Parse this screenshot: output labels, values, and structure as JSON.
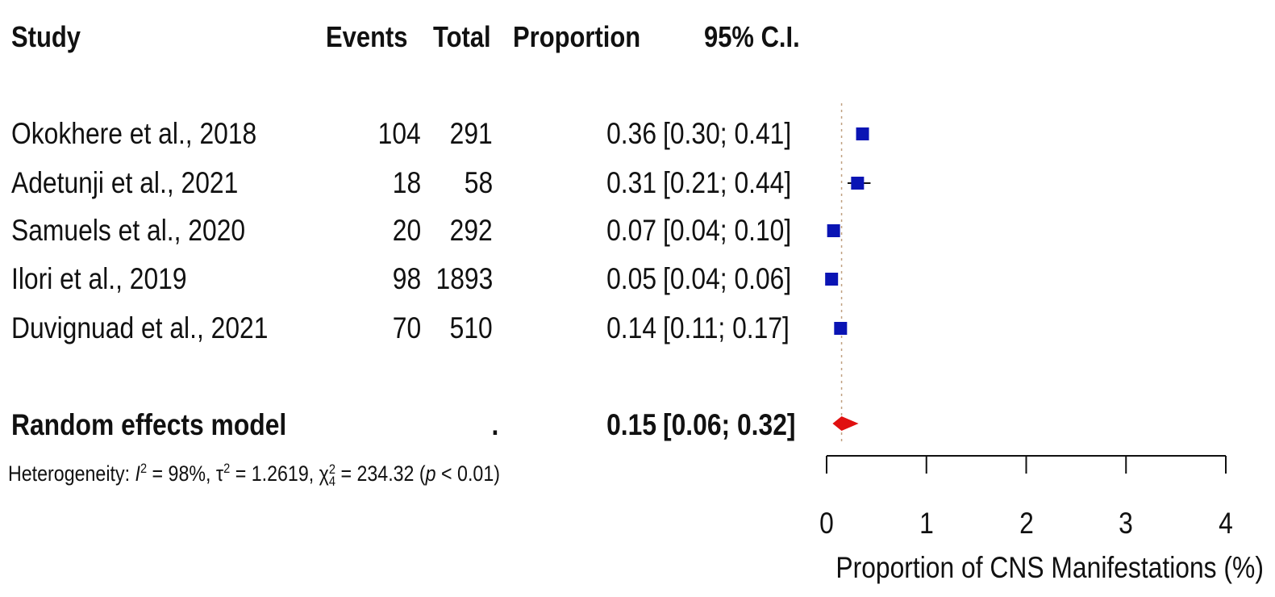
{
  "headers": {
    "study": "Study",
    "events": "Events",
    "total": "Total",
    "proportion": "Proportion",
    "ci": "95% C.I."
  },
  "studies": [
    {
      "study": "Okokhere et al., 2018",
      "events": "104",
      "total": "291",
      "proportion": "0.36",
      "ci": "[0.30; 0.41]"
    },
    {
      "study": "Adetunji et al., 2021",
      "events": "18",
      "total": "58",
      "proportion": "0.31",
      "ci": "[0.21; 0.44]"
    },
    {
      "study": "Samuels et al., 2020",
      "events": "20",
      "total": "292",
      "proportion": "0.07",
      "ci": "[0.04; 0.10]"
    },
    {
      "study": "Ilori et al., 2019",
      "events": "98",
      "total": "1893",
      "proportion": "0.05",
      "ci": "[0.04; 0.06]"
    },
    {
      "study": "Duvignuad et al., 2021",
      "events": "70",
      "total": "510",
      "proportion": "0.14",
      "ci": "[0.11; 0.17]"
    }
  ],
  "summary": {
    "label": "Random effects model",
    "events": ".",
    "proportion": "0.15",
    "ci": "[0.06; 0.32]"
  },
  "heterogeneity": {
    "prefix": "Heterogeneity: ",
    "i2_symbol": "I",
    "i2_sup": "2",
    "i2_value": " = 98%, ",
    "tau_symbol": "τ",
    "tau_sup": "2",
    "tau_value": " = 1.2619, ",
    "chi_symbol": "χ",
    "chi_sup": "2",
    "chi_sub": "4",
    "chi_value": " = 234.32 (",
    "p_symbol": "p",
    "p_value": " < 0.01)"
  },
  "colors": {
    "study_marker": "#0a14b4",
    "summary_marker": "#e01010",
    "reference_line": "#c0a080"
  },
  "chart_data": {
    "type": "forest",
    "xlabel": "Proportion of CNS Manifestations (%)",
    "xlim": [
      0,
      4
    ],
    "xticks": [
      0,
      1,
      2,
      3,
      4
    ],
    "reference_line": 0.15,
    "studies": [
      {
        "name": "Okokhere et al., 2018",
        "estimate": 0.36,
        "lower": 0.3,
        "upper": 0.41
      },
      {
        "name": "Adetunji et al., 2021",
        "estimate": 0.31,
        "lower": 0.21,
        "upper": 0.44
      },
      {
        "name": "Samuels et al., 2020",
        "estimate": 0.07,
        "lower": 0.04,
        "upper": 0.1
      },
      {
        "name": "Ilori et al., 2019",
        "estimate": 0.05,
        "lower": 0.04,
        "upper": 0.06
      },
      {
        "name": "Duvignuad et al., 2021",
        "estimate": 0.14,
        "lower": 0.11,
        "upper": 0.17
      }
    ],
    "summary": {
      "name": "Random effects model",
      "estimate": 0.15,
      "lower": 0.06,
      "upper": 0.32
    }
  }
}
